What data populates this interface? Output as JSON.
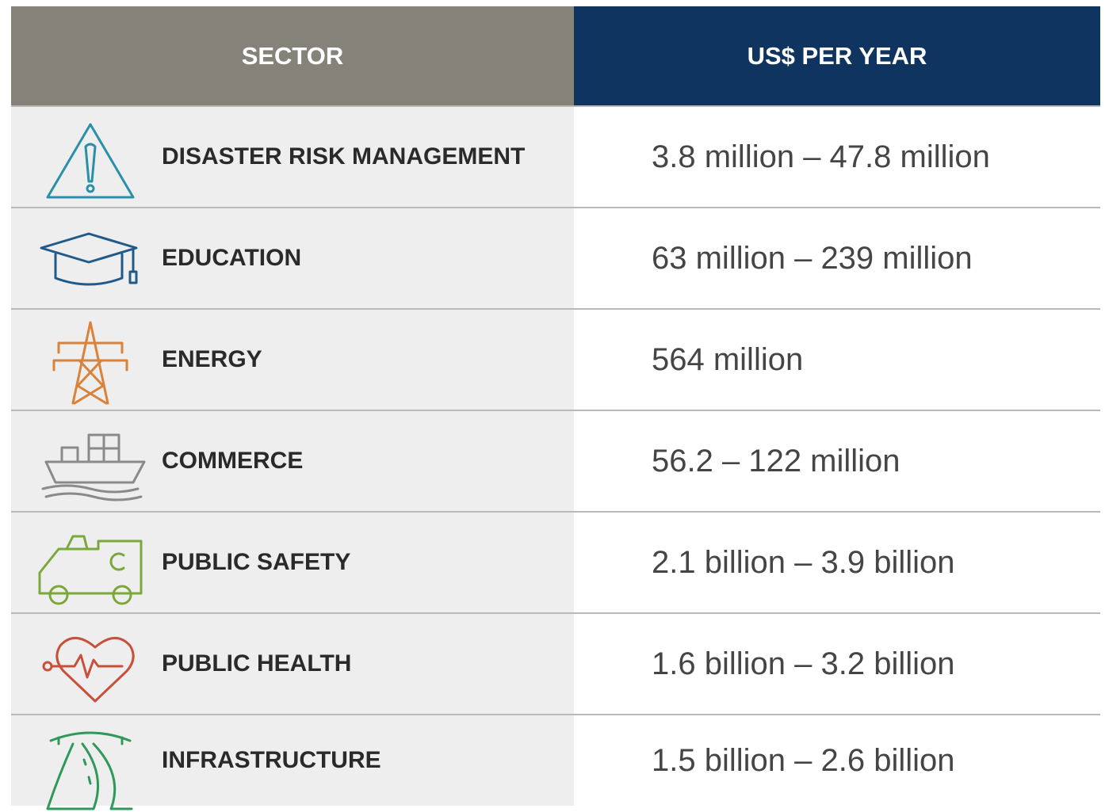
{
  "header": {
    "sector": "SECTOR",
    "amount": "US$ PER YEAR"
  },
  "rows": [
    {
      "sector": "DISASTER RISK MANAGEMENT",
      "amount": "3.8 million – 47.8 million"
    },
    {
      "sector": "EDUCATION",
      "amount": "63 million – 239 million"
    },
    {
      "sector": "ENERGY",
      "amount": "564 million"
    },
    {
      "sector": "COMMERCE",
      "amount": "56.2 – 122 million"
    },
    {
      "sector": "PUBLIC SAFETY",
      "amount": "2.1 billion – 3.9 billion"
    },
    {
      "sector": "PUBLIC HEALTH",
      "amount": "1.6 billion – 3.2 billion"
    },
    {
      "sector": "INFRASTRUCTURE",
      "amount": "1.5 billion – 2.6 billion"
    }
  ]
}
